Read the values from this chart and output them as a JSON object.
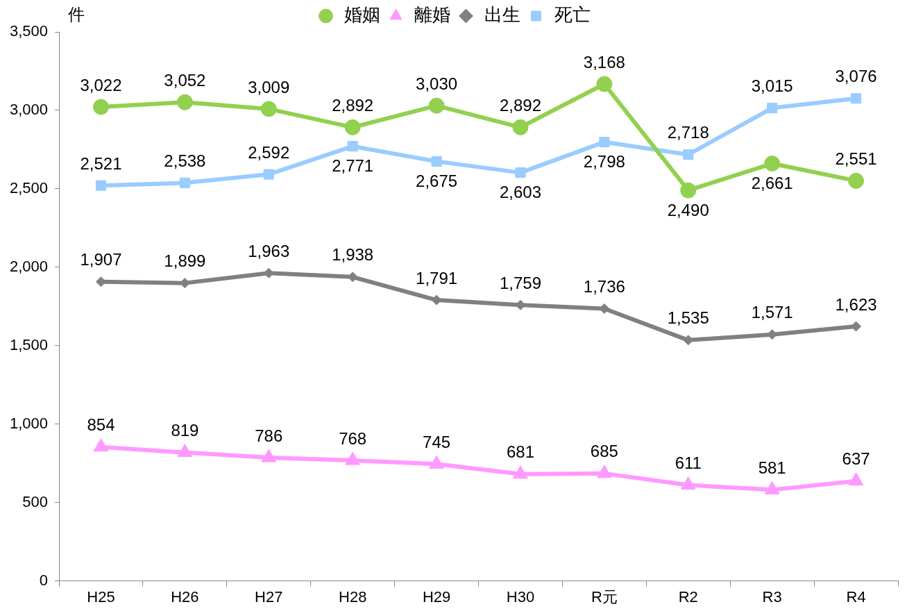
{
  "chart_data": {
    "type": "line",
    "ylabel": "件",
    "categories": [
      "H25",
      "H26",
      "H27",
      "H28",
      "H29",
      "H30",
      "R元",
      "R2",
      "R3",
      "R4"
    ],
    "series": [
      {
        "name": "婚姻",
        "color": "#92d050",
        "marker": "circle",
        "values": [
          3022,
          3052,
          3009,
          2892,
          3030,
          2892,
          3168,
          2490,
          2661,
          2551
        ],
        "value_labels": [
          "3,022",
          "3,052",
          "3,009",
          "2,892",
          "3,030",
          "2,892",
          "3,168",
          "2,490",
          "2,661",
          "2,551"
        ]
      },
      {
        "name": "離婚",
        "color": "#ff99ff",
        "marker": "triangle",
        "values": [
          854,
          819,
          786,
          768,
          745,
          681,
          685,
          611,
          581,
          637
        ],
        "value_labels": [
          "854",
          "819",
          "786",
          "768",
          "745",
          "681",
          "685",
          "611",
          "581",
          "637"
        ]
      },
      {
        "name": "出生",
        "color": "#808080",
        "marker": "diamond",
        "values": [
          1907,
          1899,
          1963,
          1938,
          1791,
          1759,
          1736,
          1535,
          1571,
          1623
        ],
        "value_labels": [
          "1,907",
          "1,899",
          "1,963",
          "1,938",
          "1,791",
          "1,759",
          "1,736",
          "1,535",
          "1,571",
          "1,623"
        ]
      },
      {
        "name": "死亡",
        "color": "#99ccff",
        "marker": "square",
        "values": [
          2521,
          2538,
          2592,
          2771,
          2675,
          2603,
          2798,
          2718,
          3015,
          3076
        ],
        "value_labels": [
          "2,521",
          "2,538",
          "2,592",
          "2,771",
          "2,675",
          "2,603",
          "2,798",
          "2,718",
          "3,015",
          "3,076"
        ]
      }
    ],
    "ylim": [
      0,
      3500
    ],
    "yticks": [
      0,
      500,
      {
        "value": 1000,
        "label": "1,000"
      },
      {
        "value": 1500,
        "label": "1,500"
      },
      {
        "value": 2000,
        "label": "2,000"
      },
      {
        "value": 2500,
        "label": "2,500"
      },
      {
        "value": 3000,
        "label": "3,000"
      },
      {
        "value": 3500,
        "label": "3,500"
      }
    ],
    "grid": false,
    "legend": "top",
    "line_style": "solid"
  }
}
